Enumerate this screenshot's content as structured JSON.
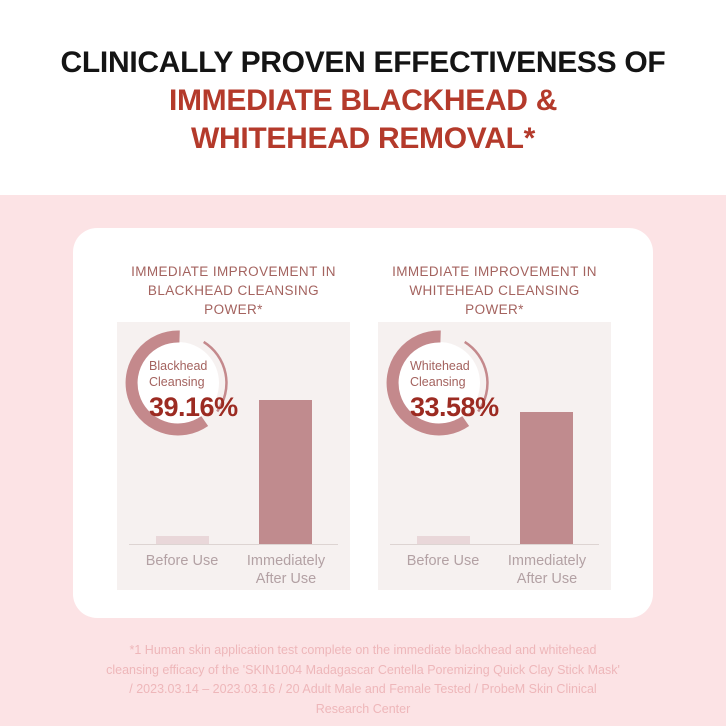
{
  "header": {
    "line1": "CLINICALLY PROVEN EFFECTIVENESS OF",
    "line2": "IMMEDIATE BLACKHEAD &",
    "line3": "WHITEHEAD REMOVAL*"
  },
  "colors": {
    "header_black": "#141414",
    "header_red": "#b43a2b",
    "pink_background": "#fce3e5",
    "card_background": "#ffffff",
    "panel_background": "#f6f1f0",
    "panel_title": "#a4635f",
    "ring_mauve": "#c4898c",
    "value_dark_red": "#9c2b22",
    "bar_before": "#e9d7d9",
    "bar_after": "#c08b8e",
    "axis_label": "#b3a1a4",
    "footnote_pink": "#eeb7ba"
  },
  "panels": [
    {
      "title_line1": "IMMEDIATE IMPROVEMENT IN",
      "title_line2": "BLACKHEAD CLEANSING POWER*",
      "donut": {
        "label_line1": "Blackhead",
        "label_line2": "Cleansing",
        "value": "39.16%"
      },
      "x_labels": [
        {
          "line1": "Before Use",
          "line2": ""
        },
        {
          "line1": "Immediately",
          "line2": "After Use"
        }
      ]
    },
    {
      "title_line1": "IMMEDIATE IMPROVEMENT IN",
      "title_line2": "WHITEHEAD CLEANSING POWER*",
      "donut": {
        "label_line1": "Whitehead",
        "label_line2": "Cleansing",
        "value": "33.58%"
      },
      "x_labels": [
        {
          "line1": "Before Use",
          "line2": ""
        },
        {
          "line1": "Immediately",
          "line2": "After Use"
        }
      ]
    }
  ],
  "chart_data": [
    {
      "type": "bar",
      "title": "IMMEDIATE IMPROVEMENT IN BLACKHEAD CLEANSING POWER*",
      "categories": [
        "Before Use",
        "Immediately After Use"
      ],
      "values_relative": [
        0.055,
        1.0
      ],
      "highlight_label": "Blackhead Cleansing",
      "highlight_value_pct": 39.16,
      "grid": false,
      "legend": "none",
      "note": "bar heights are relative (no numeric axis shown in source); donut shows improvement percentage"
    },
    {
      "type": "bar",
      "title": "IMMEDIATE IMPROVEMENT IN WHITEHEAD CLEANSING POWER*",
      "categories": [
        "Before Use",
        "Immediately After Use"
      ],
      "values_relative": [
        0.055,
        0.915
      ],
      "highlight_label": "Whitehead Cleansing",
      "highlight_value_pct": 33.58,
      "grid": false,
      "legend": "none",
      "note": "bar heights are relative (no numeric axis shown in source); donut shows improvement percentage"
    }
  ],
  "footnote": {
    "lines": [
      "*1 Human skin application test complete on the immediate blackhead and whitehead",
      "cleansing efficacy of the 'SKIN1004 Madagascar Centella Poremizing Quick Clay Stick Mask'",
      "/ 2023.03.14 – 2023.03.16 / 20 Adult Male and Female Tested / ProbeM Skin Clinical",
      "Research Center"
    ]
  }
}
